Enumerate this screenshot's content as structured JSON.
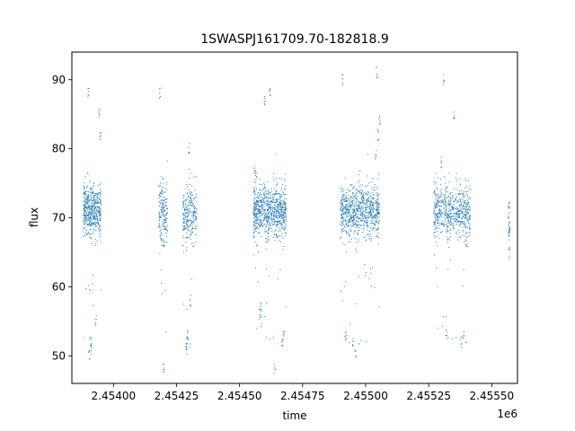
{
  "chart_data": {
    "type": "scatter",
    "title": "1SWASPJ161709.70-182818.9",
    "xlabel": "time",
    "ylabel": "flux",
    "x_offset_label": "1e6",
    "xlim": [
      2453835,
      2455602
    ],
    "ylim": [
      46,
      94
    ],
    "xticks": [
      2454000,
      2454250,
      2454500,
      2454750,
      2455000,
      2455250,
      2455500
    ],
    "xtick_labels": [
      "2.45400",
      "2.45425",
      "2.45450",
      "2.45475",
      "2.45500",
      "2.45525",
      "2.45550"
    ],
    "yticks": [
      50,
      60,
      70,
      80,
      90
    ],
    "ytick_labels": [
      "50",
      "60",
      "70",
      "80",
      "90"
    ],
    "grid": false,
    "marker_color": "#1f77b4",
    "seasons": [
      {
        "start": 2453880,
        "end": 2453950,
        "center": 71,
        "spread": 2.5,
        "n": 520,
        "outliers": [
          [
            2453910,
            51
          ],
          [
            2453905,
            50
          ],
          [
            2453912,
            52
          ],
          [
            2453945,
            85
          ],
          [
            2453948,
            82
          ],
          [
            2453900,
            88
          ],
          [
            2453930,
            55
          ]
        ]
      },
      {
        "start": 2454180,
        "end": 2454215,
        "center": 71,
        "spread": 3,
        "n": 180,
        "outliers": [
          [
            2454190,
            67
          ],
          [
            2454200,
            66
          ],
          [
            2454185,
            88
          ],
          [
            2454198,
            48
          ]
        ]
      },
      {
        "start": 2454275,
        "end": 2454330,
        "center": 70.5,
        "spread": 3,
        "n": 260,
        "outliers": [
          [
            2454292,
            52
          ],
          [
            2454295,
            53
          ],
          [
            2454290,
            51
          ],
          [
            2454300,
            80
          ],
          [
            2454305,
            58
          ]
        ]
      },
      {
        "start": 2454555,
        "end": 2454685,
        "center": 71,
        "spread": 2.6,
        "n": 820,
        "outliers": [
          [
            2454580,
            56
          ],
          [
            2454585,
            57
          ],
          [
            2454670,
            52
          ],
          [
            2454675,
            53
          ],
          [
            2454640,
            48
          ],
          [
            2454600,
            87
          ],
          [
            2454620,
            88
          ],
          [
            2454560,
            77
          ],
          [
            2454565,
            76
          ]
        ]
      },
      {
        "start": 2454900,
        "end": 2455055,
        "center": 71,
        "spread": 2.6,
        "n": 820,
        "outliers": [
          [
            2454920,
            53
          ],
          [
            2454950,
            52
          ],
          [
            2454960,
            50
          ],
          [
            2455050,
            82
          ],
          [
            2455055,
            84
          ],
          [
            2455040,
            79
          ],
          [
            2454910,
            90
          ],
          [
            2455045,
            91
          ]
        ]
      },
      {
        "start": 2455270,
        "end": 2455415,
        "center": 71,
        "spread": 2.6,
        "n": 640,
        "outliers": [
          [
            2455320,
            53
          ],
          [
            2455380,
            52
          ],
          [
            2455390,
            53
          ],
          [
            2455310,
            90
          ],
          [
            2455300,
            78
          ],
          [
            2455350,
            85
          ],
          [
            2455400,
            66
          ]
        ]
      },
      {
        "start": 2455565,
        "end": 2455572,
        "center": 69,
        "spread": 3,
        "n": 30,
        "outliers": [
          [
            2455570,
            65
          ],
          [
            2455568,
            72
          ]
        ]
      }
    ]
  }
}
